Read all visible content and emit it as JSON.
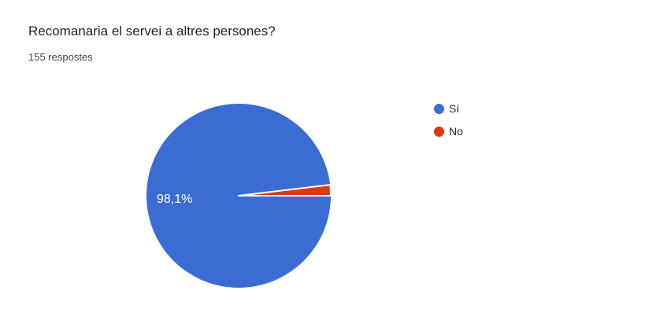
{
  "header": {
    "title": "Recomanaria el servei a altres persones?",
    "responses": "155 respostes"
  },
  "legend": {
    "position": "right",
    "items": [
      {
        "label": "Sí",
        "color": "#3b6cd4"
      },
      {
        "label": "No",
        "color": "#dc3912"
      }
    ]
  },
  "chart_data": {
    "type": "pie",
    "title": "Recomanaria el servei a altres persones?",
    "subtitle": "155 respostes",
    "total_responses": 155,
    "categories": [
      "Sí",
      "No"
    ],
    "values": [
      98.1,
      1.9
    ],
    "unit": "percent",
    "colors": [
      "#3b6cd4",
      "#dc3912"
    ],
    "slice_labels": [
      "98,1%",
      ""
    ],
    "slice_label_color": "#ffffff",
    "slice_border_color": "#ffffff",
    "legend_position": "right",
    "start_angle_note": "first slice boundary at 3 o'clock, slices drawn clockwise"
  }
}
